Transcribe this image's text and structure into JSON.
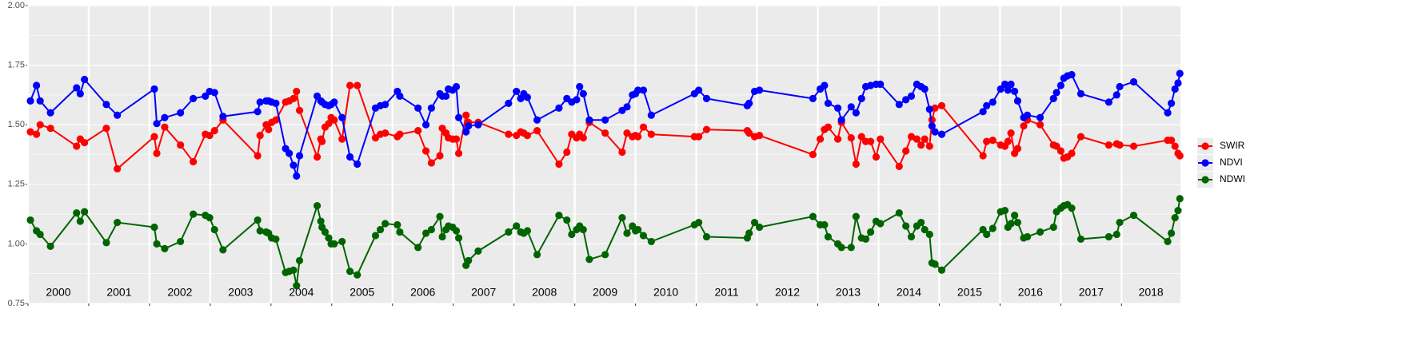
{
  "chart_data": {
    "type": "line",
    "xlim": [
      2000,
      2018.97
    ],
    "xticks": [
      2000,
      2001,
      2002,
      2003,
      2004,
      2005,
      2006,
      2007,
      2008,
      2009,
      2010,
      2011,
      2012,
      2013,
      2014,
      2015,
      2016,
      2017,
      2018
    ],
    "year_labels": [
      "2000",
      "2001",
      "2002",
      "2003",
      "2004",
      "2005",
      "2006",
      "2007",
      "2008",
      "2009",
      "2010",
      "2011",
      "2012",
      "2013",
      "2014",
      "2015",
      "2016",
      "2017",
      "2018"
    ],
    "ylim": [
      0.75,
      2.0
    ],
    "yticks": [
      {
        "value": 0.75,
        "label": "0.75"
      },
      {
        "value": 1.0,
        "label": "1.00"
      },
      {
        "value": 1.25,
        "label": "1.25"
      },
      {
        "value": 1.5,
        "label": "1.50"
      },
      {
        "value": 1.75,
        "label": "1.75"
      },
      {
        "value": 2.0,
        "label": "2.00"
      }
    ],
    "grid": true,
    "legend": "right",
    "x": [
      2000.04,
      2000.14,
      2000.2,
      2000.37,
      2000.8,
      2000.86,
      2000.93,
      2001.29,
      2001.47,
      2002.08,
      2002.12,
      2002.25,
      2002.51,
      2002.72,
      2002.92,
      2002.99,
      2003.07,
      2003.21,
      2003.78,
      2003.82,
      2003.92,
      2003.96,
      2004.01,
      2004.08,
      2004.24,
      2004.3,
      2004.37,
      2004.42,
      2004.47,
      2004.76,
      2004.82,
      2004.84,
      2004.89,
      2004.95,
      2004.99,
      2005.04,
      2005.17,
      2005.3,
      2005.42,
      2005.72,
      2005.8,
      2005.88,
      2006.08,
      2006.12,
      2006.42,
      2006.55,
      2006.64,
      2006.78,
      2006.82,
      2006.88,
      2006.92,
      2006.99,
      2007.05,
      2007.09,
      2007.21,
      2007.25,
      2007.41,
      2007.91,
      2008.04,
      2008.11,
      2008.16,
      2008.22,
      2008.38,
      2008.74,
      2008.87,
      2008.95,
      2009.03,
      2009.08,
      2009.14,
      2009.24,
      2009.5,
      2009.78,
      2009.86,
      2009.95,
      2010.0,
      2010.04,
      2010.13,
      2010.26,
      2010.97,
      2011.04,
      2011.17,
      2011.84,
      2011.87,
      2011.96,
      2012.04,
      2012.92,
      2013.04,
      2013.11,
      2013.17,
      2013.33,
      2013.39,
      2013.55,
      2013.63,
      2013.72,
      2013.79,
      2013.87,
      2013.96,
      2014.03,
      2014.34,
      2014.45,
      2014.54,
      2014.63,
      2014.7,
      2014.76,
      2014.84,
      2014.88,
      2014.93,
      2015.04,
      2015.72,
      2015.78,
      2015.88,
      2016.01,
      2016.08,
      2016.13,
      2016.18,
      2016.24,
      2016.29,
      2016.39,
      2016.45,
      2016.66,
      2016.88,
      2016.93,
      2017.0,
      2017.05,
      2017.11,
      2017.18,
      2017.33,
      2017.79,
      2017.92,
      2017.97,
      2018.2,
      2018.76,
      2018.82,
      2018.88,
      2018.93,
      2018.96
    ],
    "series": [
      {
        "name": "SWIR",
        "color": "#ff0000",
        "values": [
          1.47,
          1.46,
          1.5,
          1.485,
          1.41,
          1.44,
          1.425,
          1.485,
          1.315,
          1.45,
          1.38,
          1.49,
          1.415,
          1.345,
          1.46,
          1.455,
          1.475,
          1.52,
          1.37,
          1.455,
          1.5,
          1.48,
          1.51,
          1.52,
          1.595,
          1.6,
          1.61,
          1.64,
          1.56,
          1.365,
          1.44,
          1.43,
          1.49,
          1.505,
          1.53,
          1.52,
          1.44,
          1.665,
          1.665,
          1.445,
          1.46,
          1.465,
          1.45,
          1.46,
          1.475,
          1.39,
          1.34,
          1.37,
          1.485,
          1.465,
          1.445,
          1.44,
          1.44,
          1.38,
          1.54,
          1.51,
          1.51,
          1.46,
          1.455,
          1.47,
          1.465,
          1.455,
          1.475,
          1.335,
          1.385,
          1.46,
          1.445,
          1.46,
          1.445,
          1.51,
          1.465,
          1.385,
          1.465,
          1.45,
          1.455,
          1.45,
          1.49,
          1.46,
          1.45,
          1.45,
          1.48,
          1.475,
          1.465,
          1.45,
          1.455,
          1.375,
          1.44,
          1.48,
          1.49,
          1.44,
          1.51,
          1.445,
          1.335,
          1.45,
          1.43,
          1.43,
          1.365,
          1.44,
          1.325,
          1.39,
          1.45,
          1.44,
          1.415,
          1.44,
          1.41,
          1.52,
          1.57,
          1.58,
          1.37,
          1.43,
          1.435,
          1.415,
          1.41,
          1.43,
          1.465,
          1.38,
          1.4,
          1.495,
          1.52,
          1.5,
          1.415,
          1.41,
          1.39,
          1.36,
          1.365,
          1.38,
          1.45,
          1.415,
          1.42,
          1.415,
          1.41,
          1.435,
          1.435,
          1.41,
          1.38,
          1.37
        ]
      },
      {
        "name": "NDVI",
        "color": "#0000ff",
        "values": [
          1.6,
          1.665,
          1.6,
          1.55,
          1.655,
          1.63,
          1.69,
          1.585,
          1.54,
          1.65,
          1.505,
          1.53,
          1.55,
          1.61,
          1.62,
          1.64,
          1.635,
          1.535,
          1.555,
          1.595,
          1.6,
          1.6,
          1.595,
          1.59,
          1.4,
          1.38,
          1.33,
          1.285,
          1.37,
          1.62,
          1.6,
          1.595,
          1.585,
          1.58,
          1.585,
          1.595,
          1.53,
          1.365,
          1.335,
          1.57,
          1.58,
          1.585,
          1.64,
          1.62,
          1.57,
          1.5,
          1.57,
          1.63,
          1.62,
          1.62,
          1.65,
          1.645,
          1.66,
          1.53,
          1.47,
          1.495,
          1.5,
          1.59,
          1.64,
          1.61,
          1.63,
          1.615,
          1.52,
          1.57,
          1.61,
          1.595,
          1.605,
          1.66,
          1.63,
          1.52,
          1.52,
          1.56,
          1.575,
          1.625,
          1.63,
          1.645,
          1.645,
          1.54,
          1.63,
          1.645,
          1.61,
          1.58,
          1.59,
          1.64,
          1.645,
          1.61,
          1.65,
          1.665,
          1.59,
          1.57,
          1.52,
          1.575,
          1.55,
          1.61,
          1.66,
          1.665,
          1.67,
          1.67,
          1.585,
          1.605,
          1.62,
          1.67,
          1.66,
          1.65,
          1.565,
          1.495,
          1.47,
          1.46,
          1.555,
          1.58,
          1.595,
          1.65,
          1.67,
          1.645,
          1.67,
          1.64,
          1.6,
          1.53,
          1.54,
          1.53,
          1.61,
          1.635,
          1.665,
          1.695,
          1.705,
          1.71,
          1.63,
          1.595,
          1.625,
          1.66,
          1.68,
          1.55,
          1.59,
          1.65,
          1.675,
          1.715
        ]
      },
      {
        "name": "NDWI",
        "color": "#006400",
        "values": [
          1.1,
          1.055,
          1.04,
          0.99,
          1.13,
          1.095,
          1.135,
          1.005,
          1.09,
          1.07,
          1.0,
          0.98,
          1.01,
          1.125,
          1.12,
          1.11,
          1.06,
          0.975,
          1.1,
          1.055,
          1.05,
          1.045,
          1.025,
          1.02,
          0.88,
          0.885,
          0.89,
          0.825,
          0.93,
          1.16,
          1.095,
          1.07,
          1.05,
          1.025,
          1.0,
          1.0,
          1.01,
          0.885,
          0.87,
          1.035,
          1.06,
          1.085,
          1.08,
          1.05,
          0.985,
          1.045,
          1.06,
          1.115,
          1.03,
          1.06,
          1.075,
          1.07,
          1.055,
          1.025,
          0.91,
          0.93,
          0.97,
          1.05,
          1.075,
          1.05,
          1.045,
          1.055,
          0.955,
          1.12,
          1.1,
          1.04,
          1.06,
          1.075,
          1.06,
          0.935,
          0.955,
          1.11,
          1.045,
          1.075,
          1.055,
          1.06,
          1.035,
          1.01,
          1.08,
          1.09,
          1.03,
          1.025,
          1.045,
          1.09,
          1.07,
          1.115,
          1.08,
          1.08,
          1.03,
          1.0,
          0.985,
          0.985,
          1.115,
          1.025,
          1.02,
          1.05,
          1.095,
          1.085,
          1.13,
          1.075,
          1.03,
          1.075,
          1.09,
          1.06,
          1.04,
          0.92,
          0.915,
          0.89,
          1.06,
          1.04,
          1.065,
          1.135,
          1.14,
          1.07,
          1.085,
          1.12,
          1.09,
          1.025,
          1.03,
          1.05,
          1.07,
          1.135,
          1.15,
          1.16,
          1.165,
          1.15,
          1.02,
          1.03,
          1.04,
          1.09,
          1.12,
          1.01,
          1.045,
          1.11,
          1.14,
          1.19
        ]
      }
    ]
  }
}
